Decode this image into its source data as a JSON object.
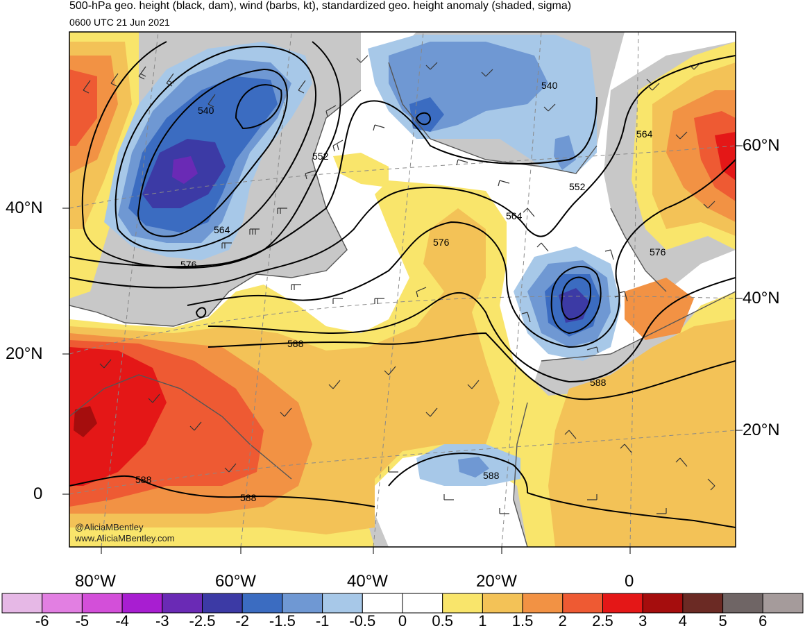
{
  "header": {
    "title": "500-hPa geo. height (black, dam), wind (barbs, kt), standardized geo. height anomaly (shaded, sigma)",
    "subtitle": "0600 UTC 21 Jun 2021"
  },
  "axes": {
    "lat_left": [
      "40°N",
      "20°N",
      "0"
    ],
    "lat_right": [
      "60°N",
      "40°N",
      "20°N"
    ],
    "lon_bottom": [
      "80°W",
      "60°W",
      "40°W",
      "20°W",
      "0"
    ]
  },
  "contour_labels": [
    "540",
    "540",
    "552",
    "552",
    "564",
    "564",
    "564",
    "576",
    "576",
    "576",
    "588",
    "588",
    "588",
    "588",
    "588"
  ],
  "credits": [
    "@AliciaMBentley",
    "www.AliciaMBentley.com"
  ],
  "colorbar": {
    "labels": [
      "-6",
      "-5",
      "-4",
      "-3",
      "-2.5",
      "-2",
      "-1.5",
      "-1",
      "-0.5",
      "0",
      "0.5",
      "1",
      "1.5",
      "2",
      "2.5",
      "3",
      "4",
      "5",
      "6"
    ],
    "colors": [
      "#e6b8e6",
      "#e27fe2",
      "#d34fd9",
      "#a81ed1",
      "#6a2ab5",
      "#3c3aa5",
      "#3b6cc1",
      "#6f98d3",
      "#a7c8e8",
      "#ffffff",
      "#ffffff",
      "#f9e56b",
      "#f3c257",
      "#f29244",
      "#ee5a33",
      "#e41717",
      "#a50d0d",
      "#6b2a24",
      "#6f6565",
      "#a59b9b"
    ]
  },
  "colors": {
    "land_neutral": "#c8c8c8",
    "contour": "#000000",
    "coast": "#555555"
  }
}
